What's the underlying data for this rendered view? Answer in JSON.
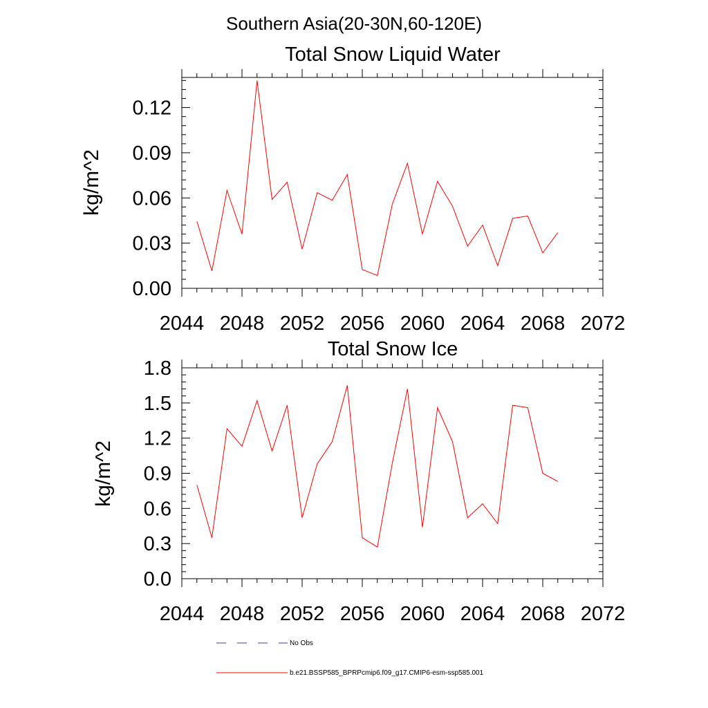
{
  "figure": {
    "suptitle": "Southern Asia(20-30N,60-120E)"
  },
  "chart_data": [
    {
      "type": "line",
      "title": "Total Snow Liquid Water",
      "xlabel": "",
      "ylabel": "kg/m^2",
      "xlim": [
        2044,
        2072
      ],
      "ylim": [
        0.0,
        0.14
      ],
      "xticks": [
        "2044",
        "2048",
        "2052",
        "2056",
        "2060",
        "2064",
        "2068",
        "2072"
      ],
      "yticks": [
        "0.00",
        "0.03",
        "0.06",
        "0.09",
        "0.12"
      ],
      "grid": false,
      "x": [
        2045,
        2046,
        2047,
        2048,
        2049,
        2050,
        2051,
        2052,
        2053,
        2054,
        2055,
        2056,
        2057,
        2058,
        2059,
        2060,
        2061,
        2062,
        2063,
        2064,
        2065,
        2066,
        2067,
        2068,
        2069
      ],
      "series": [
        {
          "name": "b.e21.BSSP585_BPRPcmip6.f09_g17.CMIP6-esm-ssp585.001",
          "color": "#ff0000",
          "values": [
            0.0445,
            0.0115,
            0.065,
            0.036,
            0.138,
            0.059,
            0.0705,
            0.026,
            0.0635,
            0.0585,
            0.0755,
            0.0125,
            0.0085,
            0.056,
            0.083,
            0.036,
            0.071,
            0.0545,
            0.028,
            0.042,
            0.015,
            0.0465,
            0.048,
            0.0235,
            0.037
          ]
        }
      ]
    },
    {
      "type": "line",
      "title": "Total Snow Ice",
      "xlabel": "",
      "ylabel": "kg/m^2",
      "xlim": [
        2044,
        2072
      ],
      "ylim": [
        0.0,
        1.8
      ],
      "xticks": [
        "2044",
        "2048",
        "2052",
        "2056",
        "2060",
        "2064",
        "2068",
        "2072"
      ],
      "yticks": [
        "0.0",
        "0.3",
        "0.6",
        "0.9",
        "1.2",
        "1.5",
        "1.8"
      ],
      "grid": false,
      "x": [
        2045,
        2046,
        2047,
        2048,
        2049,
        2050,
        2051,
        2052,
        2053,
        2054,
        2055,
        2056,
        2057,
        2058,
        2059,
        2060,
        2061,
        2062,
        2063,
        2064,
        2065,
        2066,
        2067,
        2068,
        2069
      ],
      "series": [
        {
          "name": "b.e21.BSSP585_BPRPcmip6.f09_g17.CMIP6-esm-ssp585.001",
          "color": "#ff0000",
          "values": [
            0.8,
            0.35,
            1.28,
            1.13,
            1.52,
            1.09,
            1.48,
            0.52,
            0.98,
            1.17,
            1.65,
            0.35,
            0.27,
            0.99,
            1.62,
            0.44,
            1.46,
            1.17,
            0.52,
            0.64,
            0.47,
            1.48,
            1.46,
            0.9,
            0.83
          ]
        }
      ]
    }
  ],
  "legend": [
    {
      "label": "No Obs",
      "style": "dashed",
      "color": "#3f3f9f"
    },
    {
      "label": "b.e21.BSSP585_BPRPcmip6.f09_g17.CMIP6-esm-ssp585.001",
      "style": "solid",
      "color": "#ff0000"
    }
  ]
}
